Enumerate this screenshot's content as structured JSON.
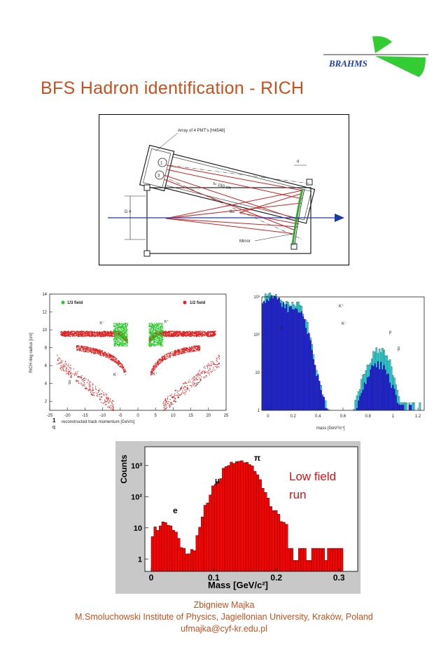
{
  "logo": {
    "text": "BRAHMS",
    "color_top": "#33cc33",
    "color_bottom": "#33cc33",
    "text_color": "#1f3fa0"
  },
  "title": "BFS Hadron identification - RICH",
  "diagram": {
    "pmt_label": "Array of 4 PMT's [H4548]",
    "pmt1": "1",
    "pmt3": "3",
    "focal": "f= 150 cm",
    "angle": "α",
    "d": "D 4",
    "angle2": "8α",
    "mirror": "Mirror",
    "ray_color": "#cc2222",
    "beam_color": "#1a3aa8"
  },
  "chart_data": [
    {
      "type": "scatter",
      "ylabel": "RICH ring radius [cm]",
      "xlabel_num": "1",
      "xlabel_den": "q",
      "xlabel": "reconstructed track momentum [GeV/c]",
      "xticks": [
        "-25",
        "-20",
        "-15",
        "-10",
        "-5",
        "0",
        "5",
        "10",
        "15",
        "20",
        "25"
      ],
      "yticks": [
        "2",
        "4",
        "6",
        "8",
        "10",
        "12",
        "14"
      ],
      "xlim": [
        -25,
        25
      ],
      "ylim": [
        1,
        14
      ],
      "legend": [
        {
          "name": "1/3 field",
          "color": "#22cc22"
        },
        {
          "name": "1/2 field",
          "color": "#dd2222"
        }
      ],
      "annotations": [
        "π⁻",
        "π⁺",
        "K⁻",
        "K⁺",
        "p̅",
        "p"
      ]
    },
    {
      "type": "histogram",
      "xlabel": "mass [GeV²/c⁴]",
      "xticks": [
        "0",
        "0.2",
        "0.4",
        "0.6",
        "0.8",
        "1",
        "1.2"
      ],
      "yticks": [
        "1",
        "10",
        "10²",
        "10³"
      ],
      "xlim": [
        -0.05,
        1.25
      ],
      "ylog": true,
      "ylim": [
        1,
        1000
      ],
      "series": [
        {
          "color": "#2222cc"
        },
        {
          "color": "#33dddd"
        }
      ],
      "annotations": [
        "π",
        "K⁺",
        "K⁻",
        "p",
        "p̅"
      ]
    },
    {
      "type": "histogram",
      "ylabel": "Counts",
      "xlabel": "Mass [GeV/c²]",
      "xticks": [
        "0",
        "0.1",
        "0.2",
        "0.3"
      ],
      "yticks": [
        "1",
        "10",
        "10²",
        "10³"
      ],
      "xlim": [
        -0.01,
        0.33
      ],
      "ylog": true,
      "ylim": [
        0.4,
        4000
      ],
      "fill_color": "#ff0000",
      "panel_color": "#c8c8c8",
      "annotations": [
        "e",
        "μ",
        "π"
      ],
      "note_line1": "Low field",
      "note_line2": "run"
    }
  ],
  "footer": {
    "author": "Zbigniew Majka",
    "institute": "M.Smoluchowski Institute of Physics, Jagiellonian University, Kraków, Poland",
    "email": "ufmajka@cyf-kr.edu.pl"
  }
}
